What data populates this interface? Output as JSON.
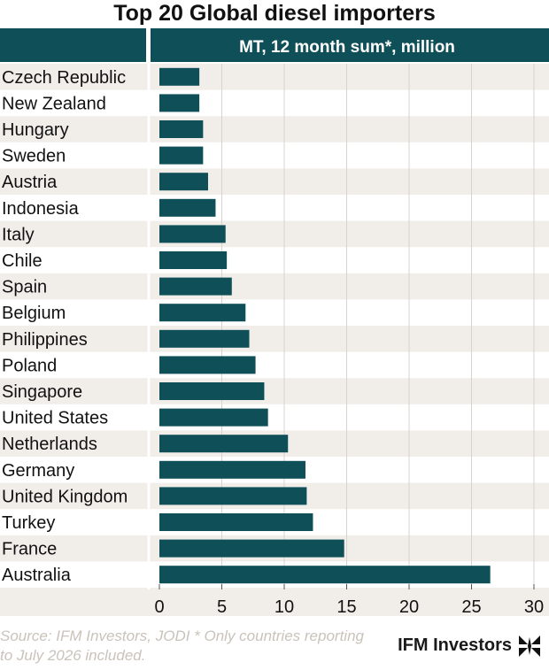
{
  "chart_data": {
    "type": "bar",
    "orientation": "horizontal",
    "title": "Top 20 Global diesel importers",
    "subtitle": "MT, 12 month sum*, million",
    "categories": [
      "Czech Republic",
      "New Zealand",
      "Hungary",
      "Sweden",
      "Austria",
      "Indonesia",
      "Italy",
      "Chile",
      "Spain",
      "Belgium",
      "Philippines",
      "Poland",
      "Singapore",
      "United States",
      "Netherlands",
      "Germany",
      "United Kingdom",
      "Turkey",
      "France",
      "Australia"
    ],
    "values": [
      3.2,
      3.2,
      3.5,
      3.5,
      3.9,
      4.5,
      5.3,
      5.4,
      5.8,
      6.9,
      7.2,
      7.7,
      8.4,
      8.7,
      10.3,
      11.7,
      11.8,
      12.3,
      14.8,
      26.5
    ],
    "xlim": [
      0,
      30
    ],
    "xticks": [
      0,
      5,
      10,
      15,
      20,
      25,
      30
    ],
    "grid": true,
    "bar_color": "#0f4f57"
  },
  "footer": {
    "source": "Source: IFM Investors, JODI * Only countries reporting to July 2026 included.",
    "brand": "IFM Investors"
  }
}
